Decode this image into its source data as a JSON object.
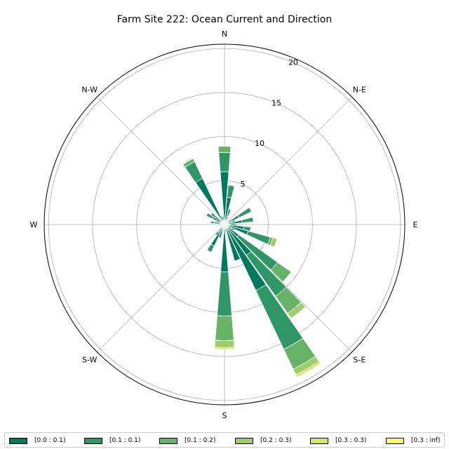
{
  "chart_data": {
    "type": "windrose",
    "title": "Farm Site 222: Ocean Current and Direction",
    "direction_labels": [
      "N",
      "N-E",
      "E",
      "S-E",
      "S",
      "S-W",
      "W",
      "N-W"
    ],
    "radial_ticks": [
      5,
      10,
      15,
      20
    ],
    "radial_max": 20.5,
    "legend_labels": [
      "[0.0 : 0.1)",
      "[0.1 : 0.1)",
      "[0.1 : 0.2)",
      "[0.2 : 0.3)",
      "[0.3 : 0.3)",
      "[0.3 : inf)"
    ],
    "colors": [
      "#007a5c",
      "#2f9766",
      "#66b266",
      "#9ecd6a",
      "#d4e864",
      "#ffff66"
    ],
    "sectors": [
      {
        "direction": 0,
        "values": [
          6.0,
          2.2,
          0.7,
          0,
          0,
          0
        ]
      },
      {
        "direction": 10,
        "values": [
          3.1,
          1.4,
          0.0,
          0,
          0,
          0
        ]
      },
      {
        "direction": 20,
        "values": [
          1.0,
          0.8,
          0.0,
          0,
          0,
          0
        ]
      },
      {
        "direction": 30,
        "values": [
          0.4,
          0.3,
          0.0,
          0,
          0,
          0
        ]
      },
      {
        "direction": 40,
        "values": [
          0.3,
          0.0,
          0.0,
          0,
          0,
          0
        ]
      },
      {
        "direction": 50,
        "values": [
          0.6,
          0.0,
          0.0,
          0,
          0,
          0
        ]
      },
      {
        "direction": 60,
        "values": [
          1.8,
          1.6,
          0.0,
          0,
          0,
          0
        ]
      },
      {
        "direction": 70,
        "values": [
          0.8,
          0.5,
          0.0,
          0,
          0,
          0
        ]
      },
      {
        "direction": 80,
        "values": [
          2.0,
          1.3,
          0.0,
          0,
          0,
          0
        ]
      },
      {
        "direction": 90,
        "values": [
          1.2,
          0.2,
          0.0,
          0,
          0,
          0
        ]
      },
      {
        "direction": 100,
        "values": [
          2.2,
          0.8,
          0.0,
          0,
          0,
          0
        ]
      },
      {
        "direction": 110,
        "values": [
          2.8,
          2.6,
          0.3,
          0.5,
          0,
          0
        ]
      },
      {
        "direction": 120,
        "values": [
          0.9,
          0.4,
          0.0,
          0,
          0,
          0
        ]
      },
      {
        "direction": 130,
        "values": [
          2.0,
          5.4,
          1.9,
          0,
          0,
          0
        ]
      },
      {
        "direction": 140,
        "values": [
          4.3,
          5.7,
          2.4,
          0.7,
          0,
          0
        ]
      },
      {
        "direction": 150,
        "values": [
          8.3,
          7.4,
          2.5,
          0.7,
          0.3,
          0
        ]
      },
      {
        "direction": 160,
        "values": [
          4.3,
          0.0,
          0.0,
          0,
          0,
          0
        ]
      },
      {
        "direction": 170,
        "values": [
          0.8,
          0.0,
          0.0,
          0,
          0,
          0
        ]
      },
      {
        "direction": 180,
        "values": [
          5.4,
          5.0,
          2.8,
          0.8,
          0.2,
          0
        ]
      },
      {
        "direction": 190,
        "values": [
          0.6,
          0.0,
          0.0,
          0,
          0,
          0
        ]
      },
      {
        "direction": 200,
        "values": [
          1.6,
          0.0,
          0.0,
          0,
          0,
          0
        ]
      },
      {
        "direction": 210,
        "values": [
          2.7,
          0.8,
          0.0,
          0,
          0,
          0
        ]
      },
      {
        "direction": 220,
        "values": [
          1.0,
          0.5,
          0.0,
          0,
          0,
          0
        ]
      },
      {
        "direction": 230,
        "values": [
          0.4,
          0.0,
          0.0,
          0,
          0,
          0
        ]
      },
      {
        "direction": 240,
        "values": [
          0.4,
          0.0,
          0.0,
          0,
          0,
          0
        ]
      },
      {
        "direction": 250,
        "values": [
          0.5,
          0.0,
          0.0,
          0,
          0,
          0
        ]
      },
      {
        "direction": 260,
        "values": [
          0.3,
          0.0,
          0.0,
          0,
          0,
          0
        ]
      },
      {
        "direction": 270,
        "values": [
          0.3,
          0.0,
          0.0,
          0,
          0,
          0
        ]
      },
      {
        "direction": 280,
        "values": [
          1.2,
          0.4,
          0.0,
          0,
          0,
          0
        ]
      },
      {
        "direction": 290,
        "values": [
          1.0,
          0.0,
          0.0,
          0,
          0,
          0
        ]
      },
      {
        "direction": 300,
        "values": [
          1.5,
          0.8,
          0.0,
          0,
          0,
          0
        ]
      },
      {
        "direction": 310,
        "values": [
          1.3,
          0.6,
          0.0,
          0,
          0,
          0
        ]
      },
      {
        "direction": 320,
        "values": [
          0.5,
          0.0,
          0.0,
          0,
          0,
          0
        ]
      },
      {
        "direction": 330,
        "values": [
          5.8,
          2.1,
          0.4,
          0.1,
          0,
          0
        ]
      },
      {
        "direction": 340,
        "values": [
          1.0,
          0.0,
          0.0,
          0,
          0,
          0
        ]
      },
      {
        "direction": 350,
        "values": [
          0.9,
          0.0,
          0.0,
          0,
          0,
          0
        ]
      }
    ],
    "grid": true,
    "legend_position": "bottom"
  }
}
